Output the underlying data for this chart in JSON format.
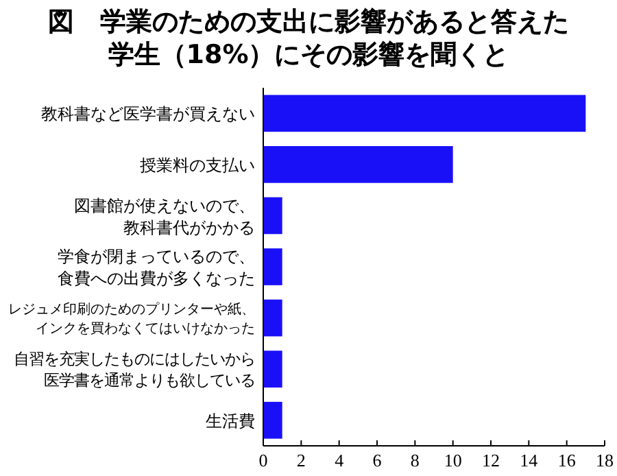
{
  "chart_data": {
    "type": "bar",
    "orientation": "horizontal",
    "title": "図　学業のための支出に影響があると答えた学生（18%）にその影響を聞くと",
    "categories": [
      "教科書など医学書が買えない",
      "授業料の支払い",
      "図書館が使えないので、教科書代がかかる",
      "学食が閉まっているので、食費への出費が多くなった",
      "レジュメ印刷のためのプリンターや紙、インクを買わなくてはいけなかった",
      "自習を充実したものにはしたいから医学書を通常よりも欲している",
      "生活費"
    ],
    "values": [
      17,
      10,
      1,
      1,
      1,
      1,
      1
    ],
    "color": "#1a10f8",
    "xlim": [
      0,
      18
    ],
    "xticks": [
      0,
      2,
      4,
      6,
      8,
      10,
      12,
      14,
      16,
      18
    ]
  }
}
